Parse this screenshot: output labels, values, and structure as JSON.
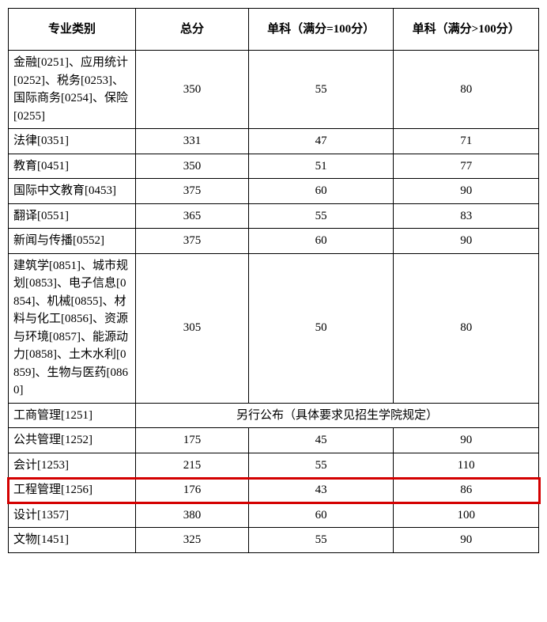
{
  "table": {
    "columns": [
      "专业类别",
      "总分",
      "单科（满分=100分）",
      "单科（满分>100分）"
    ],
    "rows": [
      {
        "category": "金融[0251]、应用统计[0252]、税务[0253]、国际商务[0254]、保险[0255]",
        "total": "350",
        "s100": "55",
        "sgt100": "80"
      },
      {
        "category": "法律[0351]",
        "total": "331",
        "s100": "47",
        "sgt100": "71"
      },
      {
        "category": "教育[0451]",
        "total": "350",
        "s100": "51",
        "sgt100": "77"
      },
      {
        "category": "国际中文教育[0453]",
        "total": "375",
        "s100": "60",
        "sgt100": "90"
      },
      {
        "category": "翻译[0551]",
        "total": "365",
        "s100": "55",
        "sgt100": "83"
      },
      {
        "category": "新闻与传播[0552]",
        "total": "375",
        "s100": "60",
        "sgt100": "90"
      },
      {
        "category": "建筑学[0851]、城市规划[0853]、电子信息[0854]、机械[0855]、材料与化工[0856]、资源与环境[0857]、能源动力[0858]、土木水利[0859]、生物与医药[0860]",
        "total": "305",
        "s100": "50",
        "sgt100": "80"
      },
      {
        "category": "工商管理[1251]",
        "merged": "另行公布（具体要求见招生学院规定）"
      },
      {
        "category": "公共管理[1252]",
        "total": "175",
        "s100": "45",
        "sgt100": "90"
      },
      {
        "category": "会计[1253]",
        "total": "215",
        "s100": "55",
        "sgt100": "110"
      },
      {
        "category": "工程管理[1256]",
        "total": "176",
        "s100": "43",
        "sgt100": "86",
        "highlight": true
      },
      {
        "category": "设计[1357]",
        "total": "380",
        "s100": "60",
        "sgt100": "100"
      },
      {
        "category": "文物[1451]",
        "total": "325",
        "s100": "55",
        "sgt100": "90"
      }
    ],
    "highlight_color": "#d40000",
    "border_color": "#000000",
    "background_color": "#ffffff",
    "font_family": "SimSun",
    "header_fontsize": 15,
    "cell_fontsize": 15
  }
}
